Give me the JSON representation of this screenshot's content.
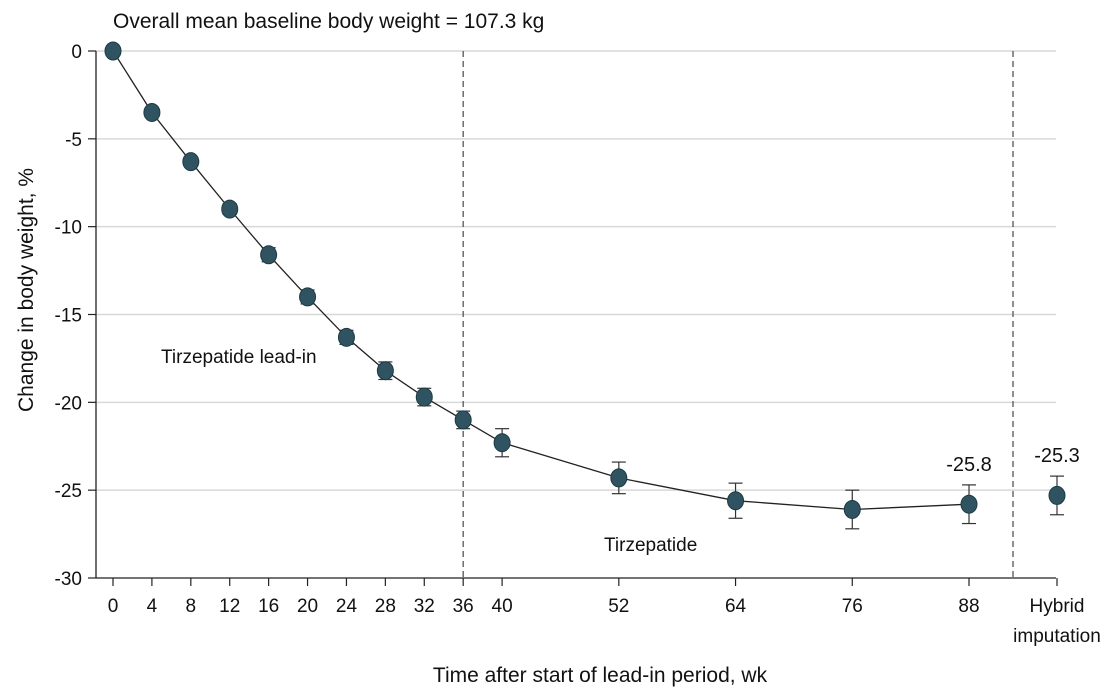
{
  "chart_data": {
    "type": "line",
    "note": "Overall mean baseline body weight = 107.3 kg",
    "xlabel": "Time after start of lead-in period, wk",
    "ylabel": "Change in body weight, %",
    "ylim": [
      -30,
      0
    ],
    "yticks": [
      0,
      -5,
      -10,
      -15,
      -20,
      -25,
      -30
    ],
    "grid": "horizontal",
    "x_tick_labels": [
      "0",
      "4",
      "8",
      "12",
      "16",
      "20",
      "24",
      "28",
      "32",
      "36",
      "40",
      "52",
      "64",
      "76",
      "88"
    ],
    "extra_category_label": [
      "Hybrid",
      "imputation"
    ],
    "series": [
      {
        "x": [
          0,
          4,
          8,
          12,
          16,
          20,
          24,
          28,
          32,
          36,
          40,
          52,
          64,
          76,
          88
        ],
        "values": [
          0,
          -3.5,
          -6.3,
          -9.0,
          -11.6,
          -14.0,
          -16.3,
          -18.2,
          -19.7,
          -21.0,
          -22.3,
          -24.3,
          -25.6,
          -26.1,
          -25.8
        ],
        "err_low": [
          0,
          0.2,
          0.2,
          0.3,
          0.4,
          0.4,
          0.4,
          0.5,
          0.5,
          0.5,
          0.8,
          0.9,
          1.0,
          1.1,
          1.1
        ],
        "err_high": [
          0,
          0.2,
          0.2,
          0.3,
          0.4,
          0.4,
          0.4,
          0.5,
          0.5,
          0.5,
          0.8,
          0.9,
          1.0,
          1.1,
          1.1
        ]
      }
    ],
    "hybrid_point": {
      "value": -25.3,
      "err": 1.1
    },
    "value_labels": [
      "-25.8",
      "-25.3"
    ],
    "phase_labels": [
      "Tirzepatide lead-in",
      "Tirzepatide"
    ],
    "divider_at_week": 36,
    "colors": {
      "marker": "#2f5360",
      "line": "#222222",
      "grid": "#d8d8d8"
    }
  }
}
